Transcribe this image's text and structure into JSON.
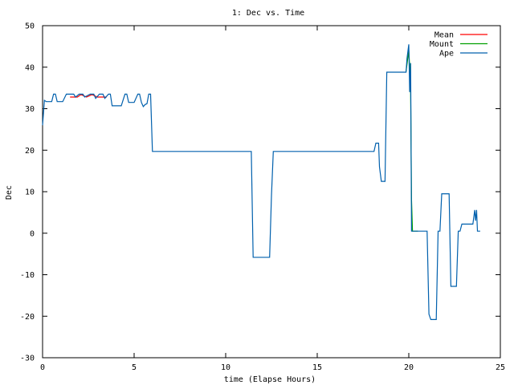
{
  "chart_data": {
    "type": "line",
    "title": "1: Dec vs. Time",
    "xlabel": "time (Elapse Hours)",
    "ylabel": "Dec",
    "xlim": [
      0,
      25
    ],
    "ylim": [
      -30,
      50
    ],
    "xticks": [
      0,
      5,
      10,
      15,
      20,
      25
    ],
    "yticks": [
      -30,
      -20,
      -10,
      0,
      10,
      20,
      30,
      40,
      50
    ],
    "grid": false,
    "legend_position": "top-right",
    "series": [
      {
        "name": "Mean",
        "color": "#ff0000",
        "points": [
          [
            1.5,
            32.8
          ],
          [
            1.9,
            32.8
          ],
          [
            2.1,
            33.4
          ],
          [
            2.4,
            32.8
          ],
          [
            2.7,
            33.4
          ],
          [
            3.0,
            32.8
          ],
          [
            3.5,
            32.8
          ]
        ]
      },
      {
        "name": "Mount",
        "color": "#00a000",
        "points": [
          [
            19.85,
            39
          ],
          [
            20.0,
            44
          ],
          [
            20.05,
            40
          ],
          [
            20.1,
            34
          ],
          [
            20.15,
            8
          ],
          [
            20.2,
            0.5
          ],
          [
            20.5,
            0.5
          ]
        ]
      },
      {
        "name": "Ape",
        "color": "#0060ad",
        "points": [
          [
            0.0,
            26
          ],
          [
            0.1,
            32
          ],
          [
            0.2,
            31.7
          ],
          [
            0.5,
            31.7
          ],
          [
            0.6,
            33.5
          ],
          [
            0.7,
            33.5
          ],
          [
            0.8,
            31.7
          ],
          [
            1.1,
            31.7
          ],
          [
            1.3,
            33.5
          ],
          [
            1.7,
            33.5
          ],
          [
            1.8,
            32.8
          ],
          [
            2.0,
            33.5
          ],
          [
            2.2,
            33.5
          ],
          [
            2.3,
            32.8
          ],
          [
            2.6,
            33.5
          ],
          [
            2.8,
            33.5
          ],
          [
            2.9,
            32.5
          ],
          [
            3.1,
            33.5
          ],
          [
            3.3,
            33.5
          ],
          [
            3.4,
            32.5
          ],
          [
            3.6,
            33.5
          ],
          [
            3.7,
            33.5
          ],
          [
            3.8,
            30.7
          ],
          [
            4.3,
            30.7
          ],
          [
            4.5,
            33.5
          ],
          [
            4.6,
            33.5
          ],
          [
            4.7,
            31.5
          ],
          [
            5.0,
            31.5
          ],
          [
            5.2,
            33.5
          ],
          [
            5.3,
            33.5
          ],
          [
            5.4,
            31.5
          ],
          [
            5.5,
            30.5
          ],
          [
            5.6,
            31
          ],
          [
            5.7,
            31.2
          ],
          [
            5.8,
            33.5
          ],
          [
            5.9,
            33.5
          ],
          [
            6.0,
            19.7
          ],
          [
            11.4,
            19.7
          ],
          [
            11.5,
            -5.8
          ],
          [
            12.4,
            -5.8
          ],
          [
            12.5,
            9
          ],
          [
            12.6,
            19.7
          ],
          [
            18.1,
            19.7
          ],
          [
            18.2,
            21.7
          ],
          [
            18.35,
            21.7
          ],
          [
            18.4,
            16
          ],
          [
            18.5,
            12.5
          ],
          [
            18.7,
            12.5
          ],
          [
            18.8,
            38.8
          ],
          [
            19.85,
            38.8
          ],
          [
            19.9,
            42
          ],
          [
            20.0,
            45.5
          ],
          [
            20.05,
            34
          ],
          [
            20.1,
            41
          ],
          [
            20.15,
            0.5
          ],
          [
            21.0,
            0.5
          ],
          [
            21.1,
            -19.5
          ],
          [
            21.2,
            -20.8
          ],
          [
            21.5,
            -20.8
          ],
          [
            21.6,
            0.5
          ],
          [
            21.7,
            0.5
          ],
          [
            21.8,
            9.5
          ],
          [
            22.2,
            9.5
          ],
          [
            22.3,
            -12.8
          ],
          [
            22.6,
            -12.8
          ],
          [
            22.7,
            0.5
          ],
          [
            22.8,
            0.5
          ],
          [
            22.9,
            2.2
          ],
          [
            23.5,
            2.2
          ],
          [
            23.6,
            5.6
          ],
          [
            23.65,
            3
          ],
          [
            23.7,
            5.6
          ],
          [
            23.75,
            0.5
          ],
          [
            23.9,
            0.5
          ]
        ]
      }
    ]
  }
}
